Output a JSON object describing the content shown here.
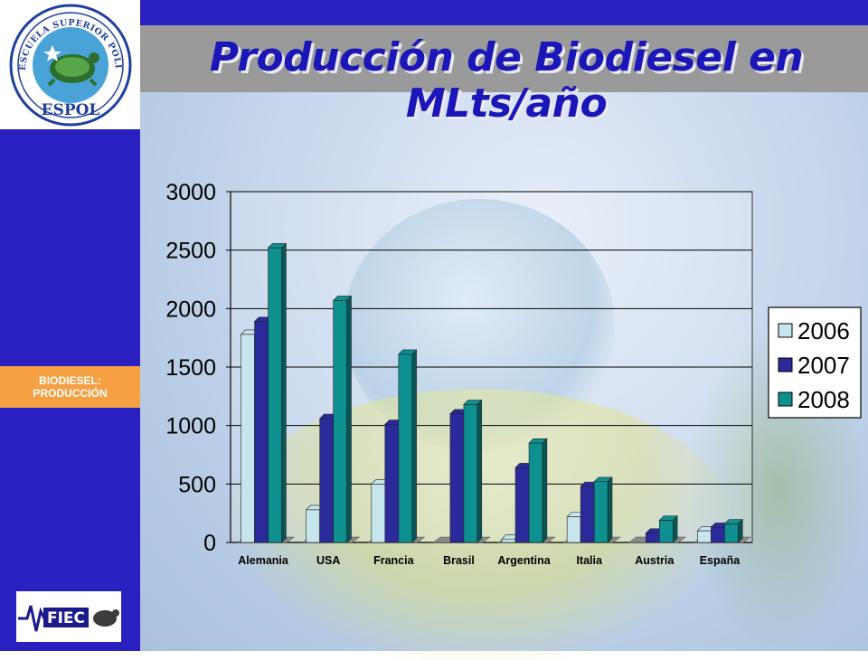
{
  "slide": {
    "title": "Producción de Biodiesel en MLts/año",
    "side_label_line1": "BIODIESEL:",
    "side_label_line2": "PRODUCCIÓN",
    "logo_text": "ESPOL",
    "logo_ring_text": "ESCUELA SUPERIOR POLITECNICA DEL LITORAL",
    "footer_logo_text": "FIEC"
  },
  "colors": {
    "sidebar": "#2a1fbf",
    "side_label": "#f5a043",
    "title_band": "#9a9a9a",
    "title_text": "#1a16b8",
    "series_2006": "#c7e5ec",
    "series_2007": "#2a2a9a",
    "series_2008": "#0e9090"
  },
  "chart_data": {
    "type": "bar",
    "categories": [
      "Alemania",
      "USA",
      "Francia",
      "Brasil",
      "Argentina",
      "Italia",
      "Austria",
      "España"
    ],
    "series": [
      {
        "name": "2006",
        "values": [
          1780,
          280,
          500,
          0,
          30,
          220,
          0,
          100
        ]
      },
      {
        "name": "2007",
        "values": [
          1890,
          1060,
          1010,
          1100,
          640,
          480,
          80,
          130
        ]
      },
      {
        "name": "2008",
        "values": [
          2520,
          2070,
          1610,
          1180,
          850,
          520,
          190,
          160
        ]
      }
    ],
    "yticks": [
      "0",
      "500",
      "1000",
      "1500",
      "2000",
      "2500",
      "3000"
    ],
    "ylim": [
      0,
      3000
    ],
    "legend": [
      "2006",
      "2007",
      "2008"
    ],
    "legend_position": "right",
    "grid": true
  }
}
